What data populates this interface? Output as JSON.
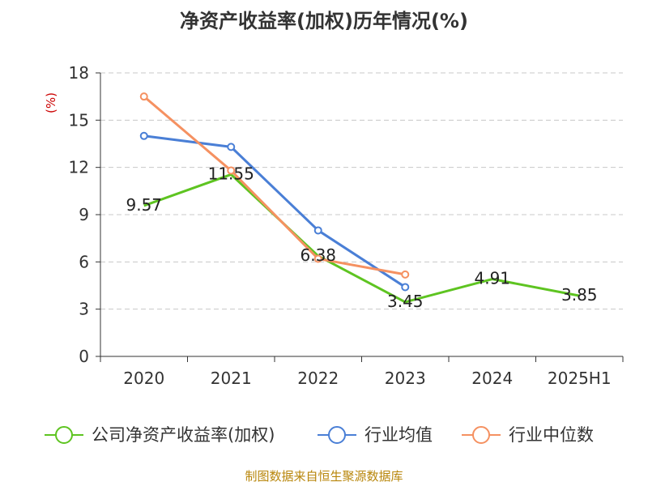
{
  "title": "净资产收益率(加权)历年情况(%)",
  "source": "制图数据来自恒生聚源数据库",
  "chart_data": {
    "type": "line",
    "title": "净资产收益率(加权)历年情况(%)",
    "ylabel": "(%)",
    "xlabel": "",
    "categories": [
      "2020",
      "2021",
      "2022",
      "2023",
      "2024",
      "2025H1"
    ],
    "ylim": [
      0,
      18
    ],
    "yticks": [
      0,
      3,
      6,
      9,
      12,
      15,
      18
    ],
    "grid": true,
    "legend_position": "bottom",
    "series": [
      {
        "name": "公司净资产收益率(加权)",
        "color": "#5ec421",
        "values": [
          9.57,
          11.55,
          6.38,
          3.45,
          4.91,
          3.85
        ],
        "data_labels": [
          "9.57",
          "11.55",
          "6.38",
          "3.45",
          "4.91",
          "3.85"
        ]
      },
      {
        "name": "行业均值",
        "color": "#4a7fd6",
        "values": [
          14.0,
          13.3,
          8.0,
          4.4,
          null,
          null
        ]
      },
      {
        "name": "行业中位数",
        "color": "#f59161",
        "values": [
          16.5,
          11.8,
          6.2,
          5.2,
          null,
          null
        ]
      }
    ]
  }
}
